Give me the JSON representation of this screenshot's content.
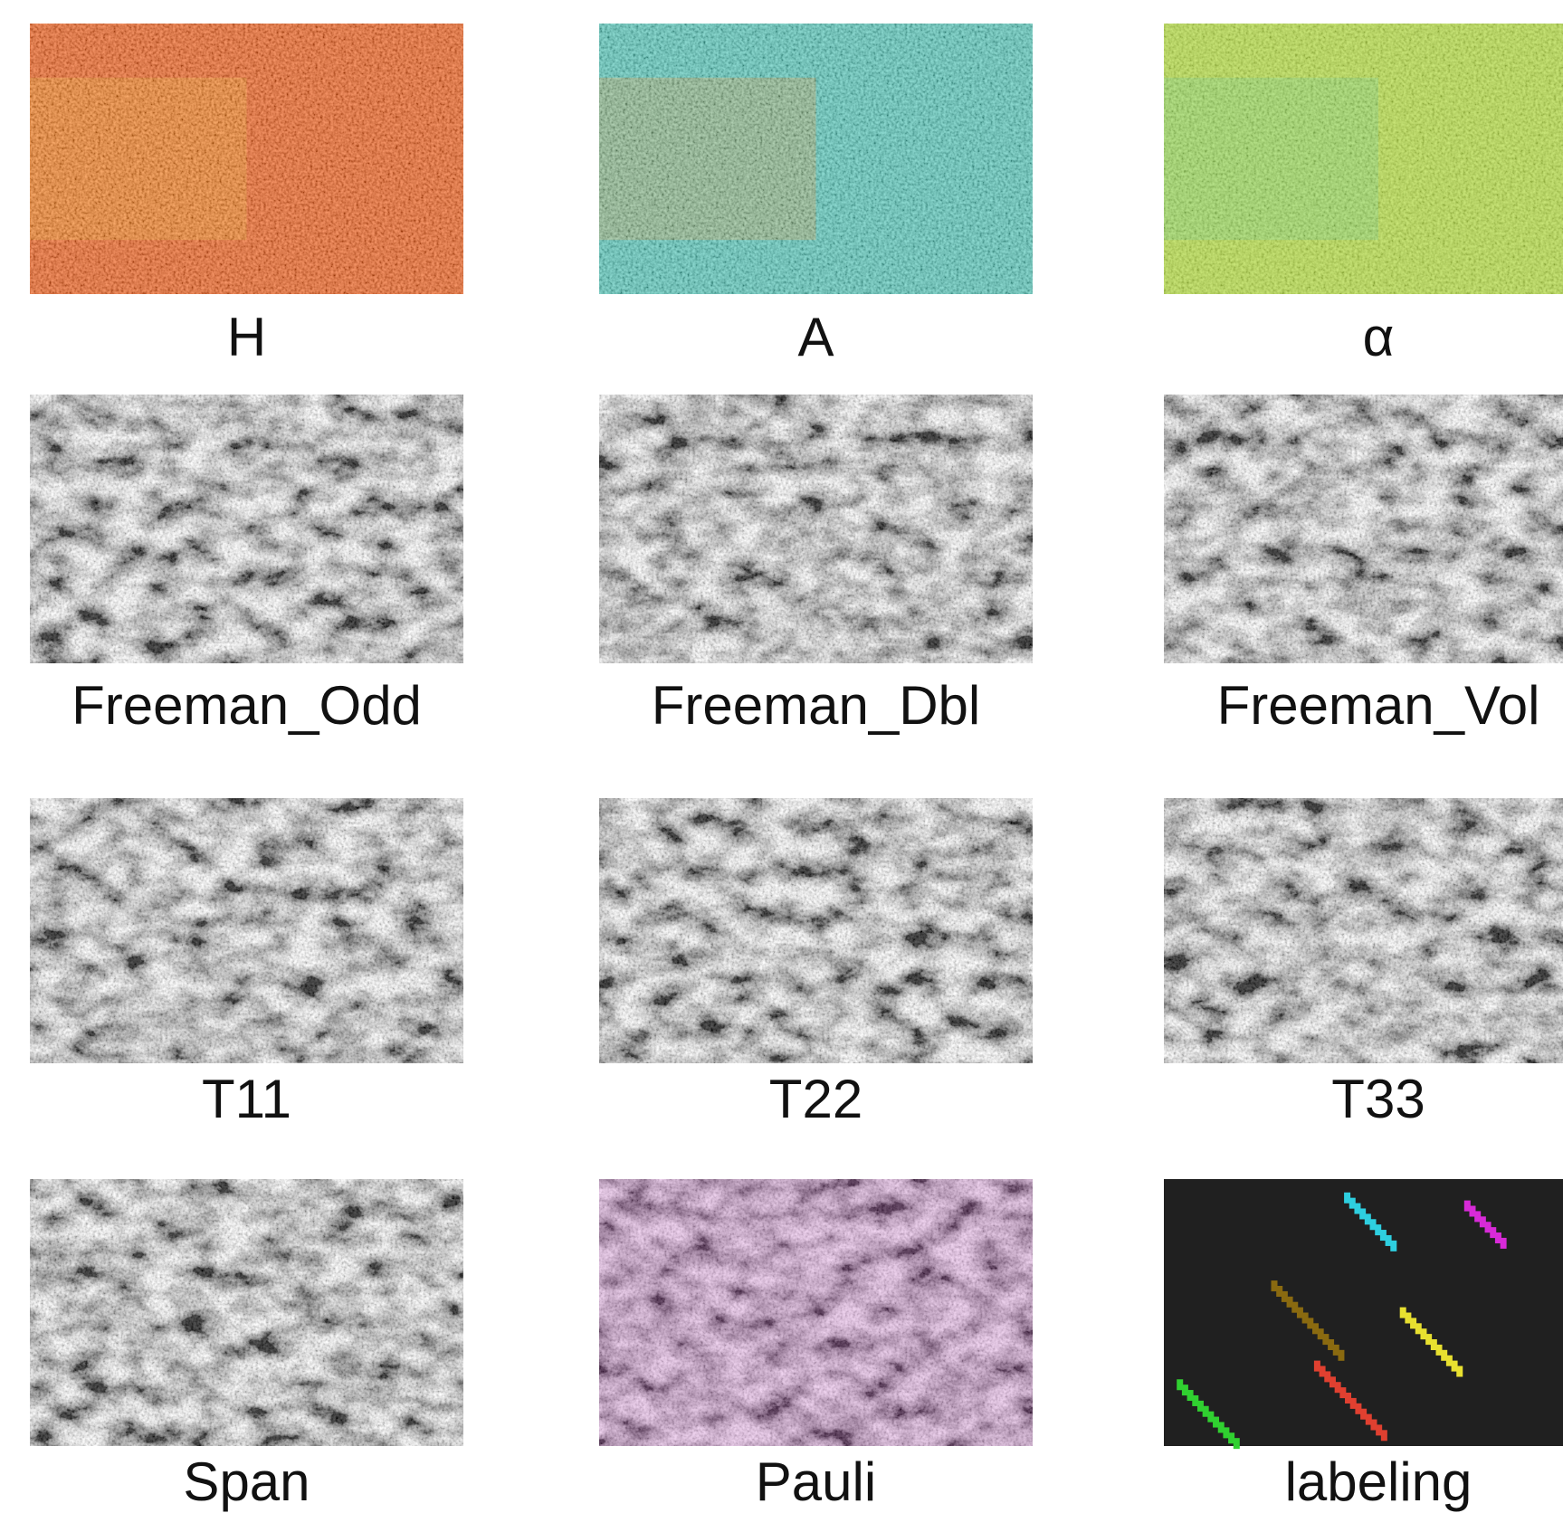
{
  "panels": [
    {
      "label": "H"
    },
    {
      "label": "A"
    },
    {
      "label": "α"
    },
    {
      "label": "Freeman_Odd"
    },
    {
      "label": "Freeman_Dbl"
    },
    {
      "label": "Freeman_Vol"
    },
    {
      "label": "T11"
    },
    {
      "label": "T22"
    },
    {
      "label": "T33"
    },
    {
      "label": "Span"
    },
    {
      "label": "Pauli"
    },
    {
      "label": "labeling"
    }
  ]
}
